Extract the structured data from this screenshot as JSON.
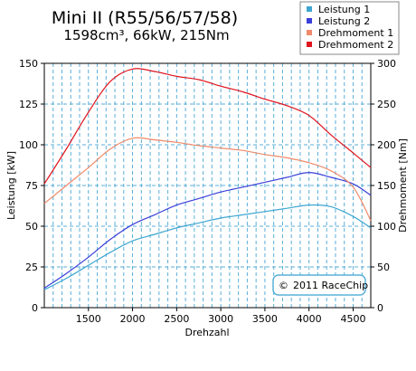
{
  "chart_data": {
    "type": "line",
    "title": "Mini II (R55/56/57/58)",
    "subtitle": "1598cm³, 66kW, 215Nm",
    "xlabel": "Drehzahl",
    "ylabel_left": "Leistung [kW]",
    "ylabel_right": "Drehmoment [Nm]",
    "xlim": [
      1000,
      4700
    ],
    "ylim_left": [
      0,
      150
    ],
    "ylim_right": [
      0,
      300
    ],
    "xticks": [
      1500,
      2000,
      2500,
      3000,
      3500,
      4000,
      4500
    ],
    "yticks_left": [
      0,
      25,
      50,
      75,
      100,
      125,
      150
    ],
    "yticks_right": [
      0,
      50,
      100,
      150,
      200,
      250,
      300
    ],
    "grid": true,
    "legend_position": "top-right",
    "copyright": "2011 RaceChip",
    "x": [
      1000,
      1250,
      1500,
      1750,
      2000,
      2250,
      2500,
      2750,
      3000,
      3250,
      3500,
      3750,
      4000,
      4250,
      4500,
      4700
    ],
    "series": [
      {
        "name": "Leistung 1",
        "axis": "left",
        "color": "#3ea6d0",
        "values": [
          11,
          18,
          26,
          34,
          41,
          45,
          49,
          52,
          55,
          57,
          59,
          61,
          63,
          62,
          56,
          49
        ]
      },
      {
        "name": "Leistung 2",
        "axis": "left",
        "color": "#3a3fd8",
        "values": [
          12,
          21,
          31,
          42,
          51,
          57,
          63,
          67,
          71,
          74,
          77,
          80,
          83,
          80,
          76,
          69
        ]
      },
      {
        "name": "Drehmoment 1",
        "axis": "right",
        "color": "#f08a6a",
        "values": [
          128,
          150,
          172,
          195,
          208,
          206,
          203,
          199,
          196,
          193,
          188,
          184,
          178,
          168,
          148,
          107
        ]
      },
      {
        "name": "Drehmoment 2",
        "axis": "right",
        "color": "#e0141e",
        "values": [
          152,
          195,
          240,
          278,
          293,
          290,
          284,
          280,
          272,
          265,
          256,
          248,
          236,
          212,
          190,
          172
        ]
      }
    ]
  }
}
